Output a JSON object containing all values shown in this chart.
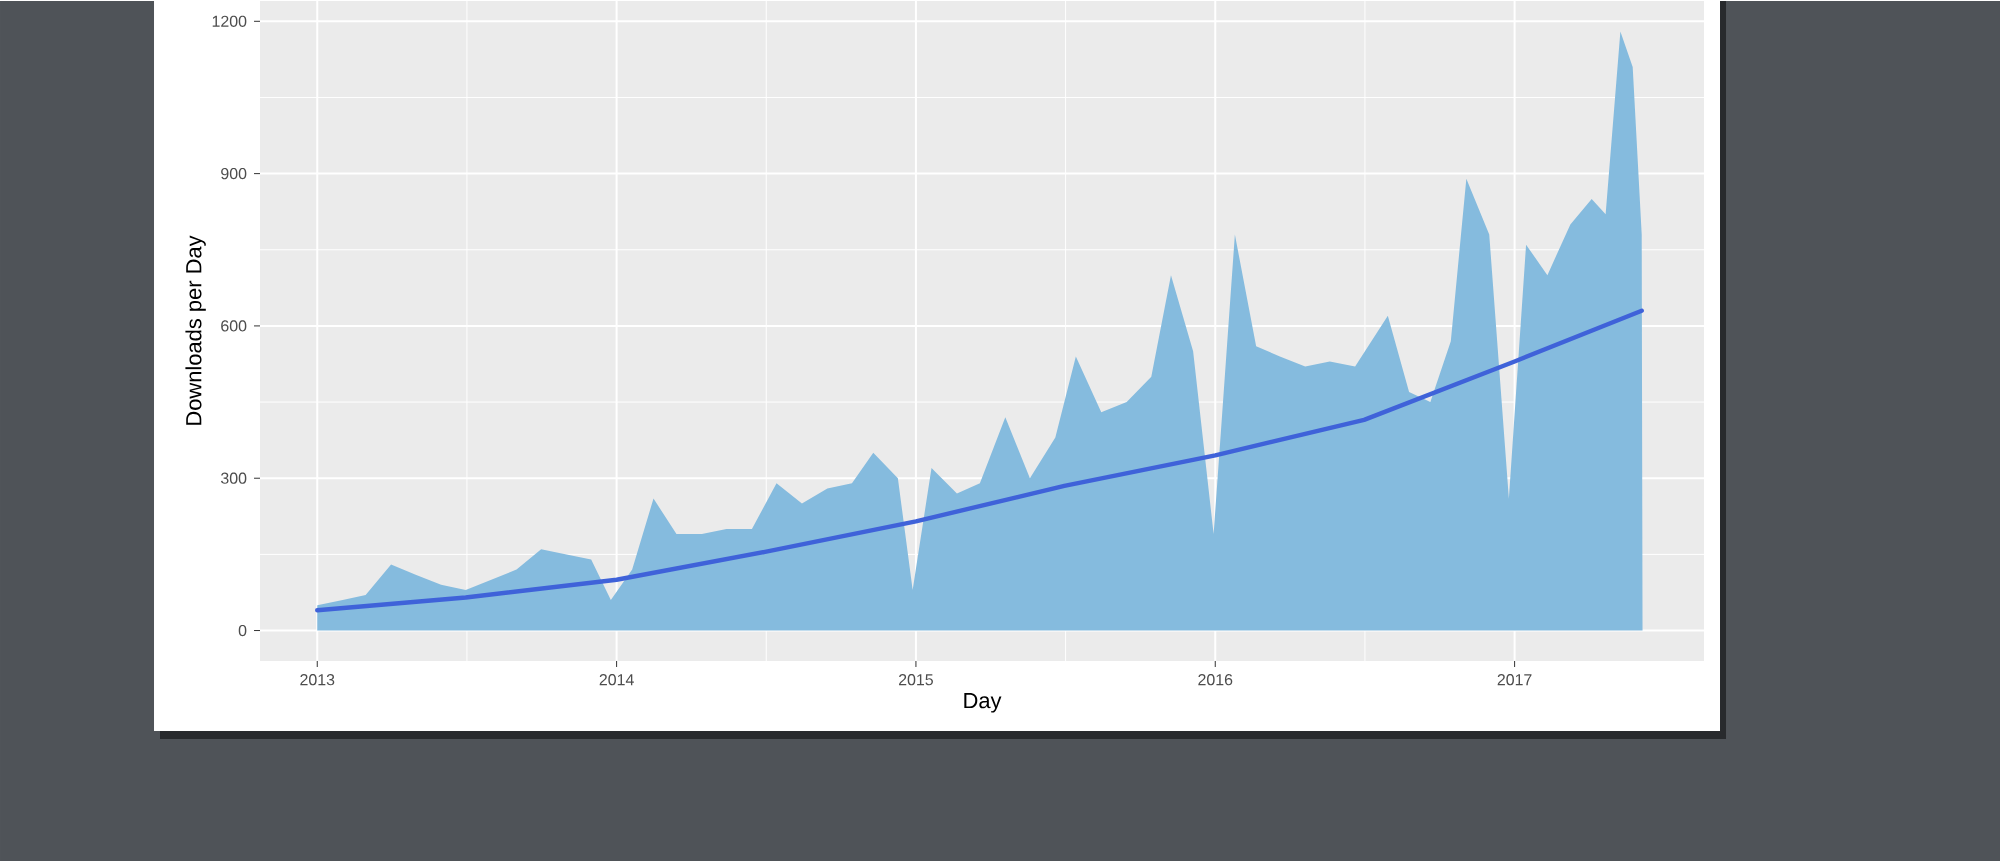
{
  "chart_data": {
    "type": "area",
    "xlabel": "Day",
    "ylabel": "Downloads per Day",
    "xlim": [
      "2012-10-23",
      "2017-08-20"
    ],
    "ylim": [
      -60,
      1240
    ],
    "xticks": [
      {
        "value": "2013",
        "label": "2013"
      },
      {
        "value": "2014",
        "label": "2014"
      },
      {
        "value": "2015",
        "label": "2015"
      },
      {
        "value": "2016",
        "label": "2016"
      },
      {
        "value": "2017",
        "label": "2017"
      }
    ],
    "yticks": [
      0,
      300,
      600,
      900,
      1200
    ],
    "grid": true,
    "marker": "none",
    "series": [
      {
        "color": "#85bbde",
        "x": [
          "2013-01-01",
          "2013-02-01",
          "2013-03-01",
          "2013-04-01",
          "2013-05-01",
          "2013-06-01",
          "2013-07-01",
          "2013-08-01",
          "2013-09-01",
          "2013-10-01",
          "2013-11-01",
          "2013-12-01",
          "2013-12-25",
          "2014-01-20",
          "2014-02-15",
          "2014-03-15",
          "2014-04-15",
          "2014-05-15",
          "2014-06-15",
          "2014-07-15",
          "2014-08-15",
          "2014-09-15",
          "2014-10-15",
          "2014-11-10",
          "2014-12-10",
          "2014-12-28",
          "2015-01-20",
          "2015-02-20",
          "2015-03-20",
          "2015-04-20",
          "2015-05-20",
          "2015-06-20",
          "2015-07-15",
          "2015-08-15",
          "2015-09-15",
          "2015-10-15",
          "2015-11-08",
          "2015-12-05",
          "2015-12-30",
          "2016-01-25",
          "2016-02-20",
          "2016-03-20",
          "2016-04-20",
          "2016-05-20",
          "2016-06-20",
          "2016-07-30",
          "2016-08-25",
          "2016-09-20",
          "2016-10-15",
          "2016-11-03",
          "2016-12-01",
          "2016-12-25",
          "2017-01-15",
          "2017-02-10",
          "2017-03-10",
          "2017-04-05",
          "2017-04-22",
          "2017-05-10",
          "2017-05-25",
          "2017-06-05",
          "2017-06-06"
        ],
        "values": [
          50,
          60,
          70,
          130,
          110,
          90,
          80,
          100,
          120,
          160,
          150,
          140,
          60,
          120,
          260,
          190,
          190,
          200,
          200,
          290,
          250,
          280,
          290,
          350,
          300,
          80,
          320,
          270,
          290,
          420,
          300,
          380,
          540,
          430,
          450,
          500,
          700,
          550,
          190,
          780,
          560,
          540,
          520,
          530,
          520,
          620,
          470,
          450,
          570,
          890,
          780,
          260,
          760,
          700,
          800,
          850,
          820,
          1180,
          1110,
          780,
          0
        ]
      },
      {
        "type": "line",
        "color": "#3f62d9",
        "x": [
          "2013-01-01",
          "2013-07-01",
          "2014-01-01",
          "2014-07-01",
          "2015-01-01",
          "2015-07-01",
          "2016-01-01",
          "2016-07-01",
          "2017-01-01",
          "2017-06-05"
        ],
        "values": [
          40,
          65,
          100,
          155,
          215,
          285,
          345,
          415,
          530,
          630
        ]
      }
    ]
  }
}
